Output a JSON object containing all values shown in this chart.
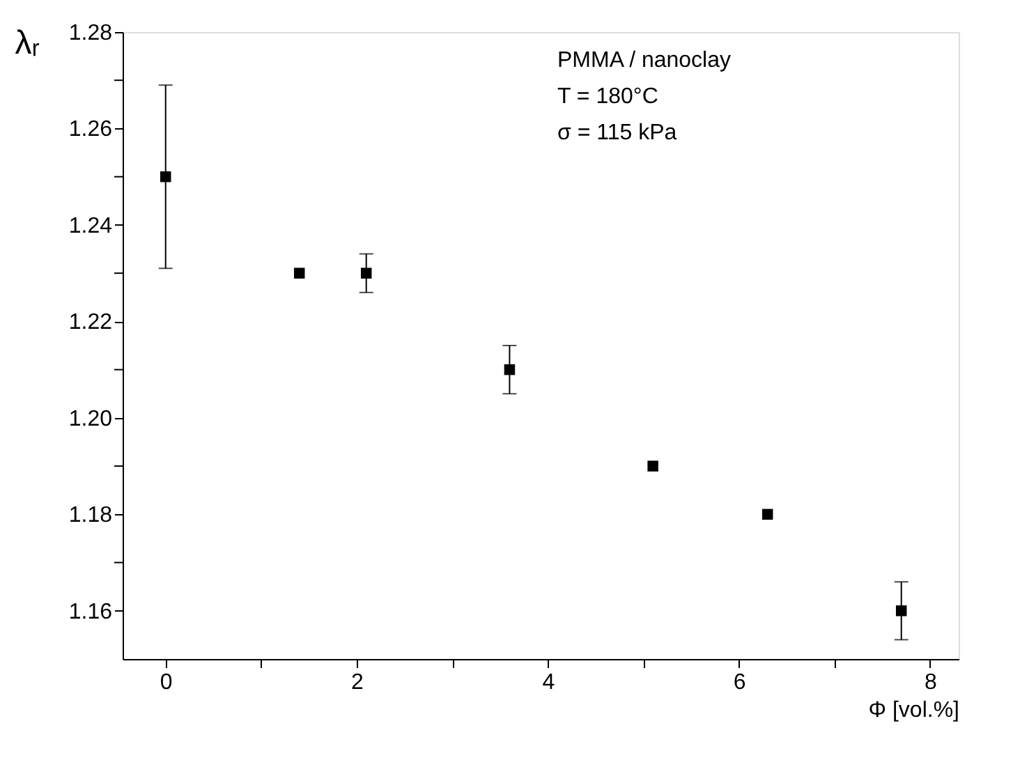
{
  "chart_data": {
    "type": "scatter",
    "xlabel": "Φ [vol.%]",
    "ylabel": "λᵣ",
    "x": [
      0,
      1.4,
      2.1,
      3.6,
      5.1,
      6.3,
      7.7
    ],
    "values": [
      1.25,
      1.23,
      1.23,
      1.21,
      1.19,
      1.18,
      1.16
    ],
    "errors": [
      0.019,
      null,
      0.004,
      0.005,
      null,
      null,
      0.006
    ],
    "color": "#000000",
    "marker": "square",
    "xlim": [
      -0.45,
      8.3
    ],
    "xticks": [
      0,
      {
        "value": 1,
        "label": null
      },
      2,
      {
        "value": 3,
        "label": null
      },
      4,
      {
        "value": 5,
        "label": null
      },
      6,
      {
        "value": 7,
        "label": null
      },
      8
    ],
    "ylim": [
      1.15,
      1.28
    ],
    "yticks": [
      1.16,
      {
        "value": 1.17,
        "label": null
      },
      1.18,
      {
        "value": 1.19,
        "label": null
      },
      {
        "value": 1.2,
        "label": "1.20"
      },
      {
        "value": 1.21,
        "label": null
      },
      1.22,
      {
        "value": 1.23,
        "label": null
      },
      1.24,
      {
        "value": 1.25,
        "label": null
      },
      1.26,
      {
        "value": 1.27,
        "label": null
      },
      1.28
    ],
    "annotations": [
      "PMMA / nanoclay",
      "T = 180°C",
      "σ = 115 kPa"
    ],
    "grid": false
  }
}
